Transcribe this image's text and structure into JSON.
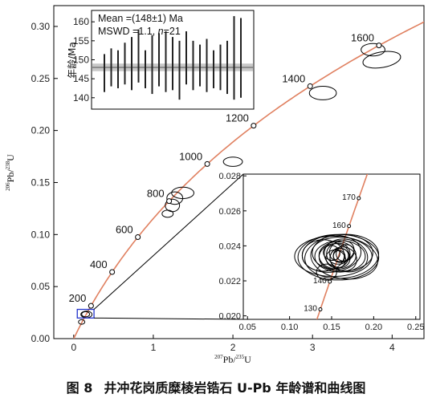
{
  "chart_data": [
    {
      "type": "scatter",
      "subtype": "concordia",
      "title": "",
      "xlabel": {
        "mass": "207",
        "element": "Pb",
        "divider": "/",
        "mass2": "235",
        "element2": "U"
      },
      "ylabel": {
        "mass": "206",
        "element": "Pb",
        "divider": "/",
        "mass2": "238",
        "element2": "U"
      },
      "xlim": [
        -0.25,
        4.4
      ],
      "ylim": [
        0,
        0.32
      ],
      "xticks": [
        0,
        1,
        2,
        3,
        4
      ],
      "xtick_labels": [
        "0",
        "1",
        "2",
        "3",
        "4"
      ],
      "yticks": [
        0,
        0.05,
        0.1,
        0.15,
        0.2,
        0.25,
        0.3
      ],
      "ytick_labels": [
        "0.00",
        "0.05",
        "0.10",
        "0.15",
        "0.20",
        "0.25",
        "0.30"
      ],
      "concordia_color": "#e08060",
      "age_marks": [
        {
          "age": 200,
          "label": "200"
        },
        {
          "age": 400,
          "label": "400"
        },
        {
          "age": 600,
          "label": "600"
        },
        {
          "age": 800,
          "label": "800"
        },
        {
          "age": 1000,
          "label": "1000"
        },
        {
          "age": 1200,
          "label": "1200"
        },
        {
          "age": 1400,
          "label": "1400"
        },
        {
          "age": 1600,
          "label": "1600"
        }
      ],
      "ellipses": [
        {
          "x": 0.16,
          "y": 0.0232,
          "rx": 0.07,
          "ry": 0.0032,
          "angle": 0
        },
        {
          "x": 0.15,
          "y": 0.0234,
          "rx": 0.05,
          "ry": 0.0025,
          "angle": 0
        },
        {
          "x": 0.1,
          "y": 0.016,
          "rx": 0.04,
          "ry": 0.0022,
          "angle": 0
        },
        {
          "x": 1.18,
          "y": 0.12,
          "rx": 0.07,
          "ry": 0.0035,
          "angle": 0
        },
        {
          "x": 1.24,
          "y": 0.128,
          "rx": 0.09,
          "ry": 0.006,
          "angle": 0
        },
        {
          "x": 1.27,
          "y": 0.135,
          "rx": 0.1,
          "ry": 0.006,
          "angle": 0
        },
        {
          "x": 1.37,
          "y": 0.14,
          "rx": 0.14,
          "ry": 0.0055,
          "angle": 0
        },
        {
          "x": 2.0,
          "y": 0.17,
          "rx": 0.12,
          "ry": 0.0045,
          "angle": 0
        },
        {
          "x": 3.13,
          "y": 0.236,
          "rx": 0.17,
          "ry": 0.0065,
          "angle": 0
        },
        {
          "x": 3.87,
          "y": 0.268,
          "rx": 0.24,
          "ry": 0.0075,
          "angle": -10
        },
        {
          "x": 3.76,
          "y": 0.2776,
          "rx": 0.15,
          "ry": 0.006,
          "angle": 0
        }
      ]
    },
    {
      "type": "bar",
      "subtype": "weighted-mean",
      "ylabel": "年龄/Ma",
      "ylim": [
        137,
        163
      ],
      "yticks": [
        140,
        145,
        150,
        155,
        160
      ],
      "ytick_labels": [
        "140",
        "145",
        "150",
        "155",
        "160"
      ],
      "mean": 148,
      "mean_band": 1,
      "mean_text": "Mean =(148±1) Ma",
      "mswd_prefix": "MSWD =1.1, ",
      "n_label": "n",
      "n_value": "=21",
      "bars": [
        {
          "low": 141.5,
          "high": 151.5
        },
        {
          "low": 143.0,
          "high": 153.0
        },
        {
          "low": 142.5,
          "high": 152.5
        },
        {
          "low": 143.5,
          "high": 154.5
        },
        {
          "low": 142.0,
          "high": 156.0
        },
        {
          "low": 144.0,
          "high": 158.0
        },
        {
          "low": 142.5,
          "high": 152.5
        },
        {
          "low": 141.0,
          "high": 156.5
        },
        {
          "low": 143.0,
          "high": 157.0
        },
        {
          "low": 141.5,
          "high": 157.5
        },
        {
          "low": 142.0,
          "high": 156.0
        },
        {
          "low": 139.5,
          "high": 155.0
        },
        {
          "low": 143.5,
          "high": 157.5
        },
        {
          "low": 142.0,
          "high": 155.0
        },
        {
          "low": 143.0,
          "high": 154.0
        },
        {
          "low": 141.5,
          "high": 155.5
        },
        {
          "low": 142.5,
          "high": 152.5
        },
        {
          "low": 142.0,
          "high": 154.0
        },
        {
          "low": 141.0,
          "high": 155.0
        },
        {
          "low": 139.5,
          "high": 161.5
        },
        {
          "low": 140.0,
          "high": 161.0
        }
      ]
    },
    {
      "type": "scatter",
      "subtype": "concordia-zoom",
      "xlim": [
        0.045,
        0.255
      ],
      "ylim": [
        0.0198,
        0.0281
      ],
      "xticks": [
        0.05,
        0.1,
        0.15,
        0.2,
        0.25
      ],
      "xtick_labels": [
        "0.05",
        "0.10",
        "0.15",
        "0.20",
        "0.25"
      ],
      "yticks": [
        0.02,
        0.022,
        0.024,
        0.026,
        0.028
      ],
      "ytick_labels": [
        "0.020",
        "0.022",
        "0.024",
        "0.026",
        "0.028"
      ],
      "age_marks": [
        {
          "age": 130,
          "label": "130"
        },
        {
          "age": 140,
          "label": "140"
        },
        {
          "age": 160,
          "label": "160"
        },
        {
          "age": 170,
          "label": "170"
        }
      ],
      "ellipses": [
        {
          "x": 0.158,
          "y": 0.02335,
          "rx": 0.048,
          "ry": 0.0013,
          "angle": 0
        },
        {
          "x": 0.162,
          "y": 0.0234,
          "rx": 0.044,
          "ry": 0.00125,
          "angle": -5
        },
        {
          "x": 0.152,
          "y": 0.0234,
          "rx": 0.046,
          "ry": 0.00115,
          "angle": 0
        },
        {
          "x": 0.165,
          "y": 0.0233,
          "rx": 0.04,
          "ry": 0.00118,
          "angle": 8
        },
        {
          "x": 0.163,
          "y": 0.0236,
          "rx": 0.036,
          "ry": 0.00105,
          "angle": 0
        },
        {
          "x": 0.15,
          "y": 0.02355,
          "rx": 0.035,
          "ry": 0.00105,
          "angle": -6
        },
        {
          "x": 0.16,
          "y": 0.0234,
          "rx": 0.03,
          "ry": 0.0009,
          "angle": 0
        },
        {
          "x": 0.14,
          "y": 0.02345,
          "rx": 0.025,
          "ry": 0.0009,
          "angle": 0
        },
        {
          "x": 0.167,
          "y": 0.02345,
          "rx": 0.026,
          "ry": 0.00092,
          "angle": 12
        },
        {
          "x": 0.157,
          "y": 0.02345,
          "rx": 0.022,
          "ry": 0.00078,
          "angle": 0
        },
        {
          "x": 0.153,
          "y": 0.0234,
          "rx": 0.018,
          "ry": 0.00072,
          "angle": -10
        },
        {
          "x": 0.164,
          "y": 0.02325,
          "rx": 0.016,
          "ry": 0.00068,
          "angle": 15
        },
        {
          "x": 0.158,
          "y": 0.02355,
          "rx": 0.014,
          "ry": 0.0006,
          "angle": 0
        },
        {
          "x": 0.16,
          "y": 0.0233,
          "rx": 0.012,
          "ry": 0.00055,
          "angle": 0
        },
        {
          "x": 0.162,
          "y": 0.0237,
          "rx": 0.015,
          "ry": 0.00058,
          "angle": -20
        },
        {
          "x": 0.155,
          "y": 0.02325,
          "rx": 0.012,
          "ry": 0.0005,
          "angle": 25
        },
        {
          "x": 0.161,
          "y": 0.02345,
          "rx": 0.009,
          "ry": 0.0004,
          "angle": 0
        },
        {
          "x": 0.159,
          "y": 0.0234,
          "rx": 0.007,
          "ry": 0.00034,
          "angle": 10
        },
        {
          "x": 0.166,
          "y": 0.0236,
          "rx": 0.011,
          "ry": 0.00045,
          "angle": -30
        },
        {
          "x": 0.15,
          "y": 0.0236,
          "rx": 0.01,
          "ry": 0.00042,
          "angle": 20
        },
        {
          "x": 0.144,
          "y": 0.0225,
          "rx": 0.012,
          "ry": 0.00046,
          "angle": 0
        }
      ]
    }
  ],
  "caption": {
    "number": "图 8",
    "title": "井冲花岗质糜棱岩锆石 U-Pb 年龄谱和曲线图"
  }
}
